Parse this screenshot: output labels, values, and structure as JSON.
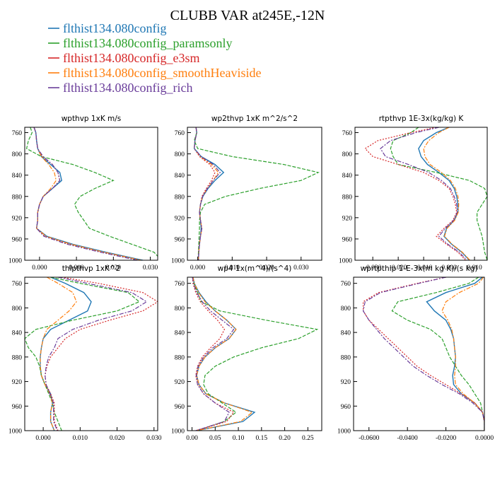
{
  "figure_title": "CLUBB VAR at245E,-12N",
  "legend": [
    {
      "name": "flthist134.080config",
      "color": "#1f77b4"
    },
    {
      "name": "flthist134.080config_paramsonly",
      "color": "#2ca02c"
    },
    {
      "name": "flthist134.080config_e3sm",
      "color": "#d62728"
    },
    {
      "name": "flthist134.080config_smoothHeaviside",
      "color": "#ff7f0e"
    },
    {
      "name": "flthist134.080config_rich",
      "color": "#6a3d9a"
    }
  ],
  "chart_data": [
    {
      "type": "line",
      "title": "wpthvp   1xK m/s",
      "xlim": [
        -0.004,
        0.032
      ],
      "ylim": [
        1000,
        750
      ],
      "xticks": [
        0,
        0.01,
        0.02,
        0.03
      ],
      "xtick_labels": [
        "0.000",
        "0.010",
        "0.020",
        "0.030"
      ],
      "yticks": [
        760,
        800,
        840,
        880,
        920,
        960,
        1000
      ],
      "y": [
        750,
        760,
        775,
        790,
        805,
        820,
        835,
        850,
        865,
        880,
        895,
        910,
        925,
        940,
        955,
        970,
        985,
        1000
      ],
      "series": [
        {
          "name": "flthist134.080config",
          "values": [
            -0.0015,
            -0.001,
            -0.0008,
            -0.0005,
            0.0005,
            0.003,
            0.0055,
            0.006,
            0.0035,
            0.001,
            0.0,
            -0.0005,
            -0.0005,
            -0.0008,
            0.002,
            0.009,
            0.018,
            0.028
          ]
        },
        {
          "name": "flthist134.080config_paramsonly",
          "values": [
            -0.0025,
            -0.002,
            -0.003,
            -0.0035,
            0.0005,
            0.009,
            0.015,
            0.02,
            0.015,
            0.011,
            0.0095,
            0.0105,
            0.012,
            0.0135,
            0.019,
            0.025,
            0.031,
            0.033
          ]
        },
        {
          "name": "flthist134.080config_e3sm",
          "values": [
            -0.0015,
            -0.001,
            -0.0008,
            -0.0005,
            0.0008,
            0.0035,
            0.005,
            0.0055,
            0.0035,
            0.001,
            0.0,
            -0.0005,
            -0.0005,
            -0.0008,
            0.0015,
            0.008,
            0.017,
            0.027
          ]
        },
        {
          "name": "flthist134.080config_smoothHeaviside",
          "values": [
            -0.0015,
            -0.001,
            -0.0008,
            -0.0005,
            0.0005,
            0.0025,
            0.004,
            0.0045,
            0.003,
            0.001,
            0.0,
            -0.0005,
            -0.0005,
            -0.0008,
            0.0018,
            0.0085,
            0.0175,
            0.0275
          ]
        },
        {
          "name": "flthist134.080config_rich",
          "values": [
            -0.0015,
            -0.001,
            -0.0008,
            -0.0005,
            0.001,
            0.0035,
            0.005,
            0.0055,
            0.0035,
            0.001,
            0.0,
            -0.0005,
            -0.0005,
            -0.0008,
            0.0012,
            0.0075,
            0.0165,
            0.0265
          ]
        }
      ]
    },
    {
      "type": "line",
      "title": "wp2thvp   1xK m^2/s^2",
      "xlim": [
        -0.003,
        0.036
      ],
      "ylim": [
        1000,
        750
      ],
      "xticks": [
        0,
        0.01,
        0.02,
        0.03
      ],
      "xtick_labels": [
        "0.000",
        "0.010",
        "0.020",
        "0.030"
      ],
      "yticks": [
        760,
        800,
        840,
        880,
        920,
        960,
        1000
      ],
      "y": [
        750,
        760,
        775,
        790,
        805,
        820,
        835,
        850,
        865,
        880,
        895,
        910,
        925,
        940,
        955,
        970,
        985,
        1000
      ],
      "series": [
        {
          "name": "flthist134.080config",
          "values": [
            -0.0005,
            -0.0003,
            -0.0008,
            -0.001,
            0.001,
            0.005,
            0.0075,
            0.005,
            0.003,
            0.0015,
            0.0008,
            0.0005,
            0.0008,
            0.001,
            0.0008,
            0.0005,
            0.0003,
            0.0002
          ]
        },
        {
          "name": "flthist134.080config_paramsonly",
          "values": [
            -0.0005,
            -0.0003,
            -0.001,
            0.0,
            0.01,
            0.025,
            0.035,
            0.03,
            0.018,
            0.008,
            0.002,
            0.0008,
            0.0005,
            0.0005,
            0.0004,
            0.0003,
            0.0002,
            0.0001
          ]
        },
        {
          "name": "flthist134.080config_e3sm",
          "values": [
            -0.0005,
            -0.0003,
            -0.0008,
            -0.001,
            0.0005,
            0.0035,
            0.005,
            0.004,
            0.0025,
            0.0012,
            0.0008,
            0.0005,
            0.0008,
            0.0012,
            0.0008,
            0.0005,
            0.0003,
            0.0002
          ]
        },
        {
          "name": "flthist134.080config_smoothHeaviside",
          "values": [
            -0.0005,
            -0.0003,
            -0.0008,
            -0.001,
            0.0008,
            0.004,
            0.006,
            0.0045,
            0.0028,
            0.0014,
            0.0008,
            0.0005,
            0.0008,
            0.0012,
            0.0008,
            0.0005,
            0.0003,
            0.0002
          ]
        },
        {
          "name": "flthist134.080config_rich",
          "values": [
            -0.0005,
            -0.0003,
            -0.0008,
            -0.001,
            0.001,
            0.0045,
            0.0065,
            0.0045,
            0.0028,
            0.0014,
            0.0008,
            0.0005,
            0.0008,
            0.0012,
            0.0008,
            0.0005,
            0.0003,
            0.0002
          ]
        }
      ]
    },
    {
      "type": "line",
      "title": "rtpthvp   1E-3x(kg/kg) K",
      "xlim": [
        -0.037,
        0.015
      ],
      "ylim": [
        1000,
        750
      ],
      "xticks": [
        -0.03,
        -0.02,
        -0.01,
        0,
        0.01
      ],
      "xtick_labels": [
        "-0.030",
        "-0.020",
        "-0.010",
        "0.000",
        "0.010"
      ],
      "yticks": [
        760,
        800,
        840,
        880,
        920,
        960,
        1000
      ],
      "y": [
        750,
        760,
        775,
        790,
        805,
        820,
        835,
        850,
        865,
        880,
        895,
        910,
        925,
        940,
        955,
        970,
        985,
        1000
      ],
      "series": [
        {
          "name": "flthist134.080config",
          "values": [
            0.0,
            -0.005,
            -0.01,
            -0.012,
            -0.011,
            -0.0085,
            -0.004,
            0.0,
            0.002,
            0.003,
            0.0035,
            0.0035,
            0.002,
            -0.001,
            -0.002,
            0.001,
            0.005,
            0.008
          ]
        },
        {
          "name": "flthist134.080config_paramsonly",
          "values": [
            -0.012,
            -0.015,
            -0.022,
            -0.023,
            -0.022,
            -0.02,
            -0.005,
            0.008,
            0.014,
            0.015,
            0.013,
            0.011,
            0.011,
            0.012,
            0.013,
            0.0135,
            0.014,
            0.015
          ]
        },
        {
          "name": "flthist134.080config_e3sm",
          "values": [
            -0.005,
            -0.015,
            -0.028,
            -0.033,
            -0.03,
            -0.02,
            -0.01,
            -0.004,
            0.0,
            0.0015,
            0.0025,
            0.003,
            0.0015,
            -0.002,
            -0.005,
            -0.001,
            0.0035,
            0.0065
          ]
        },
        {
          "name": "flthist134.080config_smoothHeaviside",
          "values": [
            0.0,
            -0.004,
            -0.008,
            -0.01,
            -0.0095,
            -0.0075,
            -0.003,
            0.0005,
            0.0025,
            0.0035,
            0.0038,
            0.0036,
            0.0022,
            -0.0008,
            -0.0018,
            0.0012,
            0.0052,
            0.0082
          ]
        },
        {
          "name": "flthist134.080config_rich",
          "values": [
            -0.004,
            -0.013,
            -0.023,
            -0.027,
            -0.025,
            -0.016,
            -0.008,
            -0.003,
            0.0005,
            0.002,
            0.003,
            0.0032,
            0.0018,
            -0.0015,
            -0.004,
            -0.0005,
            0.004,
            0.007
          ]
        }
      ]
    },
    {
      "type": "line",
      "title": "thlpthvp   1xK^2",
      "xlim": [
        -0.005,
        0.031
      ],
      "ylim": [
        1000,
        750
      ],
      "xticks": [
        0,
        0.01,
        0.02,
        0.03
      ],
      "xtick_labels": [
        "0.000",
        "0.010",
        "0.020",
        "0.030"
      ],
      "yticks": [
        760,
        800,
        840,
        880,
        920,
        960,
        1000
      ],
      "y": [
        750,
        760,
        775,
        790,
        805,
        820,
        835,
        850,
        865,
        880,
        895,
        910,
        925,
        940,
        955,
        970,
        985,
        1000
      ],
      "series": [
        {
          "name": "flthist134.080config",
          "values": [
            0.002,
            0.006,
            0.011,
            0.013,
            0.012,
            0.007,
            0.002,
            0.0,
            -0.0005,
            -0.0008,
            -0.0008,
            -0.0005,
            0.0005,
            0.002,
            0.0025,
            0.002,
            0.002,
            0.003
          ]
        },
        {
          "name": "flthist134.080config_paramsonly",
          "values": [
            0.002,
            0.01,
            0.023,
            0.026,
            0.02,
            0.008,
            -0.002,
            -0.005,
            -0.004,
            -0.002,
            -0.001,
            -0.0005,
            0.0005,
            0.0015,
            0.0025,
            0.003,
            0.004,
            0.005
          ]
        },
        {
          "name": "flthist134.080config_e3sm",
          "values": [
            0.005,
            0.015,
            0.027,
            0.031,
            0.027,
            0.018,
            0.01,
            0.006,
            0.004,
            0.002,
            0.001,
            0.0005,
            0.0008,
            0.002,
            0.003,
            0.003,
            0.003,
            0.004
          ]
        },
        {
          "name": "flthist134.080config_smoothHeaviside",
          "values": [
            0.001,
            0.004,
            0.008,
            0.009,
            0.007,
            0.004,
            0.001,
            0.0,
            -0.0005,
            -0.0008,
            -0.0008,
            -0.0005,
            0.0005,
            0.0018,
            0.0025,
            0.002,
            0.002,
            0.003
          ]
        },
        {
          "name": "flthist134.080config_rich",
          "values": [
            0.004,
            0.012,
            0.024,
            0.028,
            0.024,
            0.015,
            0.008,
            0.004,
            0.003,
            0.0015,
            0.0008,
            0.0005,
            0.0008,
            0.0018,
            0.0028,
            0.0028,
            0.0028,
            0.0038
          ]
        }
      ]
    },
    {
      "type": "line",
      "title": "wp4   1x(m^4)/(s^4)",
      "xlim": [
        -0.01,
        0.28
      ],
      "ylim": [
        1000,
        750
      ],
      "xticks": [
        0,
        0.05,
        0.1,
        0.15,
        0.2,
        0.25
      ],
      "xtick_labels": [
        "0.00",
        "0.05",
        "0.10",
        "0.15",
        "0.20",
        "0.25"
      ],
      "yticks": [
        760,
        800,
        840,
        880,
        920,
        960,
        1000
      ],
      "y": [
        750,
        760,
        775,
        790,
        805,
        820,
        835,
        850,
        865,
        880,
        895,
        910,
        925,
        940,
        955,
        970,
        985,
        1000
      ],
      "series": [
        {
          "name": "flthist134.080config",
          "values": [
            0.002,
            0.005,
            0.015,
            0.03,
            0.05,
            0.075,
            0.095,
            0.08,
            0.05,
            0.028,
            0.015,
            0.01,
            0.015,
            0.03,
            0.07,
            0.135,
            0.11,
            0.01
          ]
        },
        {
          "name": "flthist134.080config_paramsonly",
          "values": [
            0.002,
            0.004,
            0.012,
            0.02,
            0.06,
            0.16,
            0.27,
            0.23,
            0.15,
            0.09,
            0.05,
            0.028,
            0.025,
            0.035,
            0.065,
            0.095,
            0.07,
            0.01
          ]
        },
        {
          "name": "flthist134.080config_e3sm",
          "values": [
            0.001,
            0.002,
            0.008,
            0.018,
            0.035,
            0.055,
            0.07,
            0.06,
            0.04,
            0.022,
            0.012,
            0.008,
            0.012,
            0.025,
            0.05,
            0.09,
            0.075,
            0.008
          ]
        },
        {
          "name": "flthist134.080config_smoothHeaviside",
          "values": [
            0.002,
            0.005,
            0.014,
            0.028,
            0.05,
            0.075,
            0.095,
            0.08,
            0.05,
            0.028,
            0.015,
            0.01,
            0.015,
            0.03,
            0.07,
            0.13,
            0.105,
            0.01
          ]
        },
        {
          "name": "flthist134.080config_rich",
          "values": [
            0.001,
            0.003,
            0.01,
            0.022,
            0.04,
            0.065,
            0.09,
            0.075,
            0.045,
            0.025,
            0.013,
            0.009,
            0.012,
            0.025,
            0.05,
            0.08,
            0.07,
            0.008
          ]
        }
      ]
    },
    {
      "type": "line",
      "title": "wprtpthlp   1-E-3x(m kg K)/(s kg)",
      "xlim": [
        -0.068,
        0.0
      ],
      "ylim": [
        1000,
        750
      ],
      "xticks": [
        -0.06,
        -0.04,
        -0.02,
        0
      ],
      "xtick_labels": [
        "-0.0600",
        "-0.0400",
        "-0.0200",
        "0.0000"
      ],
      "yticks": [
        760,
        800,
        840,
        880,
        920,
        960,
        1000
      ],
      "y": [
        750,
        760,
        775,
        790,
        805,
        820,
        835,
        850,
        865,
        880,
        895,
        910,
        925,
        940,
        955,
        970,
        985,
        1000
      ],
      "series": [
        {
          "name": "flthist134.080config",
          "values": [
            -0.001,
            -0.005,
            -0.02,
            -0.03,
            -0.026,
            -0.02,
            -0.0175,
            -0.016,
            -0.0155,
            -0.015,
            -0.0155,
            -0.0165,
            -0.016,
            -0.012,
            -0.005,
            -0.001,
            0.0,
            0.0
          ]
        },
        {
          "name": "flthist134.080config_paramsonly",
          "values": [
            -0.003,
            -0.008,
            -0.025,
            -0.045,
            -0.048,
            -0.04,
            -0.028,
            -0.022,
            -0.02,
            -0.018,
            -0.015,
            -0.012,
            -0.008,
            -0.005,
            -0.002,
            -0.001,
            0.0,
            0.0
          ]
        },
        {
          "name": "flthist134.080config_e3sm",
          "values": [
            -0.02,
            -0.035,
            -0.055,
            -0.063,
            -0.063,
            -0.06,
            -0.055,
            -0.05,
            -0.045,
            -0.04,
            -0.035,
            -0.028,
            -0.02,
            -0.012,
            -0.005,
            -0.001,
            0.0,
            0.0
          ]
        },
        {
          "name": "flthist134.080config_smoothHeaviside",
          "values": [
            -0.0005,
            -0.003,
            -0.013,
            -0.02,
            -0.022,
            -0.019,
            -0.017,
            -0.016,
            -0.0155,
            -0.015,
            -0.015,
            -0.0155,
            -0.015,
            -0.011,
            -0.005,
            -0.001,
            0.0,
            0.0
          ]
        },
        {
          "name": "flthist134.080config_rich",
          "values": [
            -0.02,
            -0.034,
            -0.054,
            -0.062,
            -0.063,
            -0.06,
            -0.056,
            -0.052,
            -0.047,
            -0.042,
            -0.037,
            -0.03,
            -0.022,
            -0.013,
            -0.006,
            -0.001,
            0.0,
            0.0
          ]
        }
      ]
    }
  ]
}
